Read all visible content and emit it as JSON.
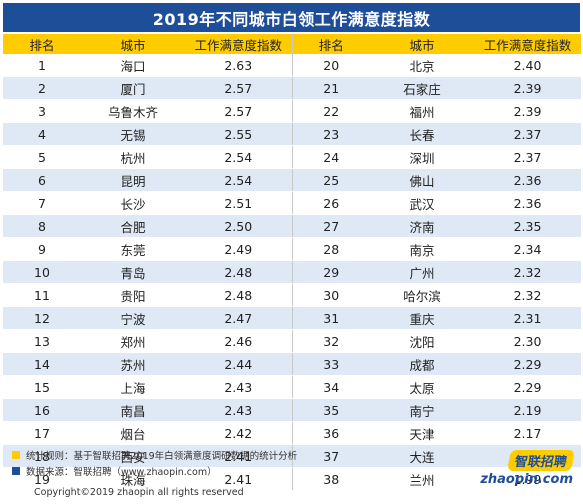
{
  "title": "2019年不同城市白领工作满意度指数",
  "headers": {
    "rank": "排名",
    "city": "城市",
    "index": "工作满意度指数"
  },
  "left_rows": [
    {
      "rank": "1",
      "city": "海口",
      "value": "2.63"
    },
    {
      "rank": "2",
      "city": "厦门",
      "value": "2.57"
    },
    {
      "rank": "3",
      "city": "乌鲁木齐",
      "value": "2.57"
    },
    {
      "rank": "4",
      "city": "无锡",
      "value": "2.55"
    },
    {
      "rank": "5",
      "city": "杭州",
      "value": "2.54"
    },
    {
      "rank": "6",
      "city": "昆明",
      "value": "2.54"
    },
    {
      "rank": "7",
      "city": "长沙",
      "value": "2.51"
    },
    {
      "rank": "8",
      "city": "合肥",
      "value": "2.50"
    },
    {
      "rank": "9",
      "city": "东莞",
      "value": "2.49"
    },
    {
      "rank": "10",
      "city": "青岛",
      "value": "2.48"
    },
    {
      "rank": "11",
      "city": "贵阳",
      "value": "2.48"
    },
    {
      "rank": "12",
      "city": "宁波",
      "value": "2.47"
    },
    {
      "rank": "13",
      "city": "郑州",
      "value": "2.46"
    },
    {
      "rank": "14",
      "city": "苏州",
      "value": "2.44"
    },
    {
      "rank": "15",
      "city": "上海",
      "value": "2.43"
    },
    {
      "rank": "16",
      "city": "南昌",
      "value": "2.43"
    },
    {
      "rank": "17",
      "city": "烟台",
      "value": "2.42"
    },
    {
      "rank": "18",
      "city": "西安",
      "value": "2.41"
    },
    {
      "rank": "19",
      "city": "珠海",
      "value": "2.41"
    }
  ],
  "right_rows": [
    {
      "rank": "20",
      "city": "北京",
      "value": "2.40"
    },
    {
      "rank": "21",
      "city": "石家庄",
      "value": "2.39"
    },
    {
      "rank": "22",
      "city": "福州",
      "value": "2.39"
    },
    {
      "rank": "23",
      "city": "长春",
      "value": "2.37"
    },
    {
      "rank": "24",
      "city": "深圳",
      "value": "2.37"
    },
    {
      "rank": "25",
      "city": "佛山",
      "value": "2.36"
    },
    {
      "rank": "26",
      "city": "武汉",
      "value": "2.36"
    },
    {
      "rank": "27",
      "city": "济南",
      "value": "2.35"
    },
    {
      "rank": "28",
      "city": "南京",
      "value": "2.34"
    },
    {
      "rank": "29",
      "city": "广州",
      "value": "2.32"
    },
    {
      "rank": "30",
      "city": "哈尔滨",
      "value": "2.32"
    },
    {
      "rank": "31",
      "city": "重庆",
      "value": "2.31"
    },
    {
      "rank": "32",
      "city": "沈阳",
      "value": "2.30"
    },
    {
      "rank": "33",
      "city": "成都",
      "value": "2.29"
    },
    {
      "rank": "34",
      "city": "太原",
      "value": "2.29"
    },
    {
      "rank": "35",
      "city": "南宁",
      "value": "2.19"
    },
    {
      "rank": "36",
      "city": "天津",
      "value": "2.17"
    },
    {
      "rank": "37",
      "city": "大连",
      "value": "2.17"
    },
    {
      "rank": "38",
      "city": "兰州",
      "value": "1.99"
    }
  ],
  "notes": {
    "rule": "统计规则：基于智联招聘2019年白领满意度调研数据的统计分析",
    "source": "数据来源：智联招聘（www.zhaopin.com）"
  },
  "copyright": "Copyright©2019 zhaopin all rights reserved",
  "brand": {
    "cn": "智联招聘",
    "en": "zhaopin.com"
  },
  "colors": {
    "header_bg": "#1f4e99",
    "column_header_bg": "#ffcc00",
    "stripe_bg": "#dfe8f5"
  }
}
